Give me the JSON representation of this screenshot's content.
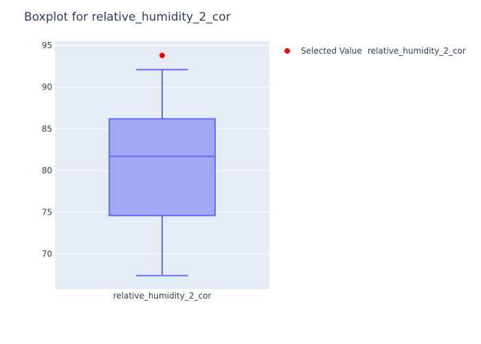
{
  "chart_data": {
    "type": "box",
    "title": "Boxplot for relative_humidity_2_cor",
    "xlabel": "",
    "ylabel": "",
    "categories": [
      "relative_humidity_2_cor"
    ],
    "ylim": [
      65.8,
      95.5
    ],
    "yticks": [
      70,
      75,
      80,
      85,
      90,
      95
    ],
    "grid": true,
    "box": {
      "name": "relative_humidity_2_cor",
      "lower_fence": 67.4,
      "q1": 74.6,
      "median": 81.7,
      "q3": 86.2,
      "upper_fence": 92.1,
      "color": "#636efa",
      "fill": "#a1a9f7"
    },
    "selected_value": {
      "name": "Selected Value",
      "value": 93.8,
      "color": "#ff0000"
    },
    "legend": {
      "placement": "top-right",
      "entries": [
        "Selected Value",
        "relative_humidity_2_cor"
      ]
    },
    "colors": {
      "plot_bg": "#e5ecf6",
      "grid": "#ffffff",
      "text": "#2a3f5f"
    }
  }
}
